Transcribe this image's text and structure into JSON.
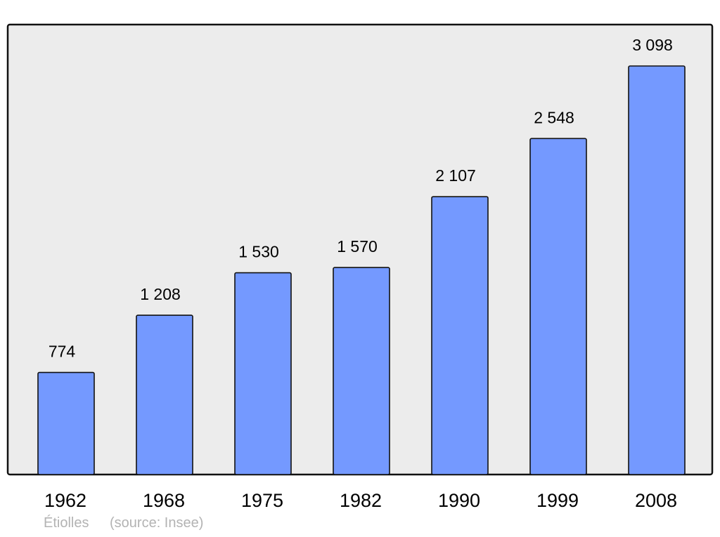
{
  "chart_data": {
    "type": "bar",
    "categories": [
      "1962",
      "1968",
      "1975",
      "1982",
      "1990",
      "1999",
      "2008"
    ],
    "values": [
      774,
      1208,
      1530,
      1570,
      2107,
      2548,
      3098
    ],
    "value_labels": [
      "774",
      "1 208",
      "1 530",
      "1 570",
      "2 107",
      "2 548",
      "3 098"
    ],
    "title": "",
    "xlabel": "",
    "ylabel": "",
    "ylim": [
      0,
      3412
    ],
    "grid": false,
    "bar_color": "#7499ff",
    "background_color": "#ececec"
  },
  "caption": {
    "place": "Étiolles",
    "source": "(source: Insee)"
  }
}
